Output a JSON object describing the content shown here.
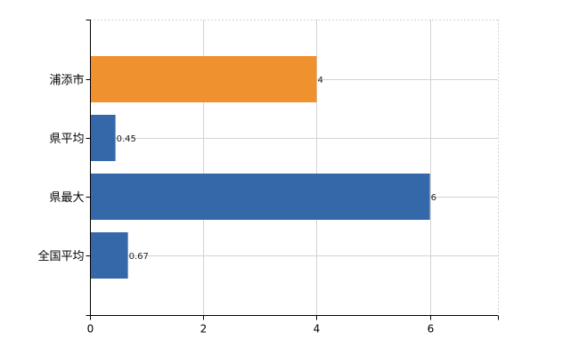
{
  "chart_data": {
    "type": "bar",
    "orientation": "horizontal",
    "title": "",
    "xlabel": "",
    "ylabel": "",
    "categories": [
      "浦添市",
      "県平均",
      "県最大",
      "全国平均"
    ],
    "values": [
      4,
      0.45,
      6,
      0.67
    ],
    "value_labels": [
      "4",
      "0.45",
      "6",
      "0.67"
    ],
    "bar_colors": [
      "#f0912f",
      "#3568a8",
      "#3568a8",
      "#3568a8"
    ],
    "xlim": [
      0,
      7.2
    ],
    "x_ticks": [
      0,
      2,
      4,
      6
    ],
    "x_tick_labels": [
      "0",
      "2",
      "4",
      "6"
    ],
    "grid": true,
    "legend": "none"
  }
}
